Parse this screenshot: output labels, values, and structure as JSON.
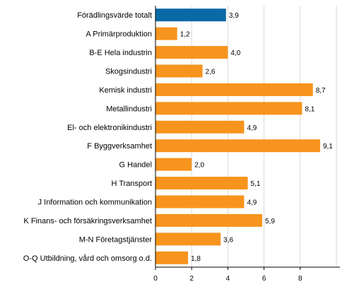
{
  "chart_data": {
    "type": "bar",
    "orientation": "horizontal",
    "categories": [
      "Förädlingsvärde totalt",
      "A Primärproduktion",
      "B-E Hela industrin",
      "Skogsindustri",
      "Kemisk industri",
      "Metallindustri",
      "El- och elektronikindustri",
      "F Byggverksamhet",
      "G Handel",
      "H Transport",
      "J Information och kommunikation",
      "K Finans- och försäkringsverksamhet",
      "M-N Företagstjänster",
      "O-Q Utbildning, vård och omsorg o.d."
    ],
    "values": [
      3.9,
      1.2,
      4.0,
      2.6,
      8.7,
      8.1,
      4.9,
      9.1,
      2.0,
      5.1,
      4.9,
      5.9,
      3.6,
      1.8
    ],
    "value_labels": [
      "3,9",
      "1,2",
      "4,0",
      "2,6",
      "8,7",
      "8,1",
      "4,9",
      "9,1",
      "2,0",
      "5,1",
      "4,9",
      "5,9",
      "3,6",
      "1,8"
    ],
    "highlight_index": 0,
    "colors": {
      "highlight": "#0a6aa6",
      "default": "#f7941d"
    },
    "xlim": [
      0,
      10
    ],
    "xticks": [
      0,
      2,
      4,
      6,
      8
    ],
    "grid": true,
    "legend": "none"
  }
}
